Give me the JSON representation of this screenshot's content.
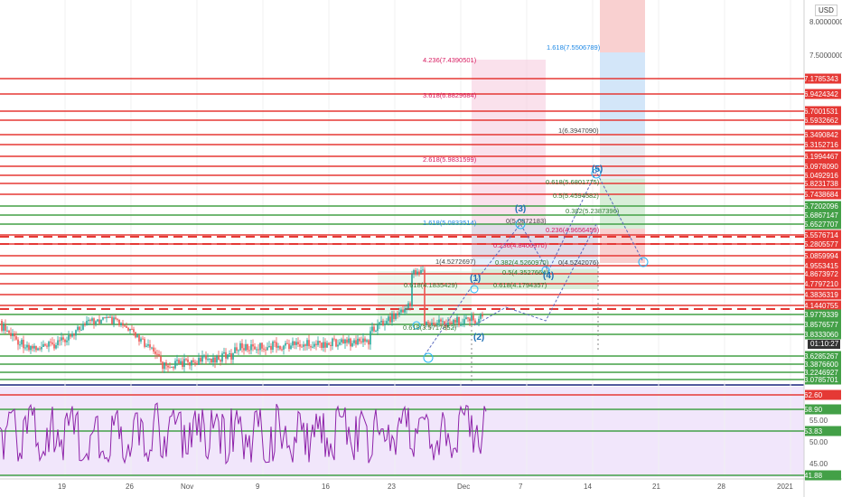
{
  "currency": "USD",
  "axis_top_prices": [
    "8.0000000",
    "7.5000000"
  ],
  "h_levels": [
    {
      "price": "7.1785343",
      "color": "#e53935",
      "bg": "#e53935"
    },
    {
      "price": "6.9424342",
      "color": "#e53935",
      "bg": "#e53935"
    },
    {
      "price": "6.7001531",
      "color": "#e53935",
      "bg": "#e53935"
    },
    {
      "price": "6.5932662",
      "color": "#e53935",
      "bg": "#e53935"
    },
    {
      "price": "6.3490842",
      "color": "#e53935",
      "bg": "#e53935"
    },
    {
      "price": "6.3152716",
      "color": "#e53935",
      "bg": "#e53935"
    },
    {
      "price": "6.1994467",
      "color": "#e53935",
      "bg": "#e53935"
    },
    {
      "price": "6.0978090",
      "color": "#e53935",
      "bg": "#e53935"
    },
    {
      "price": "6.0492916",
      "color": "#e53935",
      "bg": "#e53935"
    },
    {
      "price": "5.8231738",
      "color": "#e53935",
      "bg": "#e53935"
    },
    {
      "price": "5.7438684",
      "color": "#e53935",
      "bg": "#e53935"
    },
    {
      "price": "5.7202096",
      "color": "#43a047",
      "bg": "#43a047"
    },
    {
      "price": "5.6867147",
      "color": "#43a047",
      "bg": "#43a047"
    },
    {
      "price": "5.6527707",
      "color": "#43a047",
      "bg": "#43a047"
    },
    {
      "price": "5.5576714",
      "color": "#e53935",
      "bg": "#e53935"
    },
    {
      "price": "5.2805577",
      "color": "#e53935",
      "bg": "#e53935"
    },
    {
      "price": "5.0859994",
      "color": "#e53935",
      "bg": "#e53935"
    },
    {
      "price": "4.9553415",
      "color": "#e53935",
      "bg": "#e53935"
    },
    {
      "price": "4.8673972",
      "color": "#e53935",
      "bg": "#e53935"
    },
    {
      "price": "4.7797210",
      "color": "#e53935",
      "bg": "#e53935"
    },
    {
      "price": "4.3836319",
      "color": "#e53935",
      "bg": "#e53935"
    },
    {
      "price": "4.1440755",
      "color": "#e53935",
      "bg": "#e53935"
    },
    {
      "price": "3.9779339",
      "color": "#43a047",
      "bg": "#43a047"
    },
    {
      "price": "3.8576577",
      "color": "#43a047",
      "bg": "#43a047"
    },
    {
      "price": "3.8333060",
      "color": "#43a047",
      "bg": "#43a047"
    },
    {
      "price": "3.6285267",
      "color": "#43a047",
      "bg": "#43a047"
    },
    {
      "price": "3.3876600",
      "color": "#43a047",
      "bg": "#43a047"
    },
    {
      "price": "3.2246927",
      "color": "#43a047",
      "bg": "#43a047"
    },
    {
      "price": "3.0785701",
      "color": "#43a047",
      "bg": "#43a047"
    }
  ],
  "current_time": "01:10:27",
  "rsi_levels": [
    {
      "value": "62.60",
      "color": "#e53935"
    },
    {
      "value": "58.90",
      "color": "#43a047"
    },
    {
      "value": "53.83",
      "color": "#43a047"
    },
    {
      "value": "41.88",
      "color": "#43a047"
    }
  ],
  "rsi_axis": [
    "55.00",
    "50.00",
    "45.00"
  ],
  "x_axis": [
    "19",
    "26",
    "Nov",
    "9",
    "16",
    "23",
    "Dec",
    "7",
    "14",
    "21",
    "28",
    "2021"
  ],
  "fib_labels": [
    {
      "text": "4.236(7.4390501)",
      "color": "#d81b60"
    },
    {
      "text": "3.618(6.8829684)",
      "color": "#d81b60"
    },
    {
      "text": "2.618(5.9831599)",
      "color": "#d81b60"
    },
    {
      "text": "1.618(5.0833514)",
      "color": "#1e88e5"
    },
    {
      "text": "1(4.5272697)",
      "color": "#444444"
    },
    {
      "text": "0.618(4.1835429)",
      "color": "#2e7d32"
    },
    {
      "text": "0.618(3.5717852)",
      "color": "#2e7d32"
    },
    {
      "text": "1.618(7.5506789)",
      "color": "#1e88e5"
    },
    {
      "text": "1(6.3947090)",
      "color": "#444444"
    },
    {
      "text": "0.618(5.6801775)",
      "color": "#2e7d32"
    },
    {
      "text": "0.5(5.4594582)",
      "color": "#2e7d32"
    },
    {
      "text": "0.382(5.2387396)",
      "color": "#2e7d32"
    },
    {
      "text": "0.236(4.9656459)",
      "color": "#d81b60"
    },
    {
      "text": "0(5.0872183)",
      "color": "#444444"
    },
    {
      "text": "0.236(4.8406970)",
      "color": "#d81b60"
    },
    {
      "text": "0.382(4.5260970)",
      "color": "#2e7d32"
    },
    {
      "text": "0.5(4.3527664)",
      "color": "#2e7d32"
    },
    {
      "text": "0.618(4.1794357)",
      "color": "#2e7d32"
    },
    {
      "text": "0(4.5242076)",
      "color": "#444444"
    }
  ],
  "waves": [
    "(1)",
    "(2)",
    "(3)",
    "(4)",
    "(5)"
  ]
}
